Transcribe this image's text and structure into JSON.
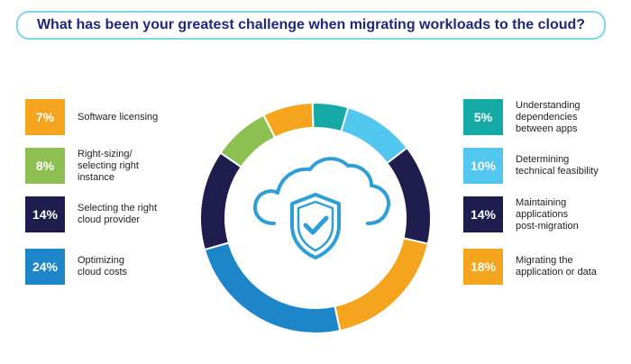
{
  "title": "What has been your greatest challenge when migrating workloads to the cloud?",
  "colors": {
    "orange": "#f5a51d",
    "green": "#8cc152",
    "navy": "#1f1d4e",
    "blue": "#1c86c9",
    "teal": "#16aaa6",
    "lightblue": "#51c6ee",
    "title_border": "#7fd4ec",
    "icon": "#2e9fd6"
  },
  "center_icon": "cloud-shield-check-icon",
  "chart_data": {
    "type": "pie",
    "subtype": "donut",
    "title": "What has been your greatest challenge when migrating workloads to the cloud?",
    "slices": [
      {
        "label": "Understanding dependencies between apps",
        "value": 5,
        "value_label": "5%",
        "color": "#16aaa6"
      },
      {
        "label": "Determining technical feasibility",
        "value": 10,
        "value_label": "10%",
        "color": "#51c6ee"
      },
      {
        "label": "Maintaining applications post-migration",
        "value": 14,
        "value_label": "14%",
        "color": "#1f1d4e"
      },
      {
        "label": "Migrating the application or data",
        "value": 18,
        "value_label": "18%",
        "color": "#f5a51d"
      },
      {
        "label": "Optimizing cloud costs",
        "value": 24,
        "value_label": "24%",
        "color": "#1c86c9"
      },
      {
        "label": "Selecting the right cloud provider",
        "value": 14,
        "value_label": "14%",
        "color": "#1f1d4e"
      },
      {
        "label": "Right-sizing/ selecting right instance",
        "value": 8,
        "value_label": "8%",
        "color": "#8cc152"
      },
      {
        "label": "Software licensing",
        "value": 7,
        "value_label": "7%",
        "color": "#f5a51d"
      }
    ],
    "legend": {
      "left": [
        {
          "value_label": "7%",
          "lines": [
            "Software licensing"
          ],
          "color": "#f5a51d"
        },
        {
          "value_label": "8%",
          "lines": [
            "Right-sizing/",
            "selecting right",
            "instance"
          ],
          "color": "#8cc152"
        },
        {
          "value_label": "14%",
          "lines": [
            "Selecting the right",
            "cloud provider"
          ],
          "color": "#1f1d4e"
        },
        {
          "value_label": "24%",
          "lines": [
            "Optimizing",
            "cloud costs"
          ],
          "color": "#1c86c9"
        }
      ],
      "right": [
        {
          "value_label": "5%",
          "lines": [
            "Understanding",
            "dependencies",
            "between apps"
          ],
          "color": "#16aaa6"
        },
        {
          "value_label": "10%",
          "lines": [
            "Determining",
            "technical feasibility"
          ],
          "color": "#51c6ee"
        },
        {
          "value_label": "14%",
          "lines": [
            "Maintaining",
            "applications",
            "post-migration"
          ],
          "color": "#1f1d4e"
        },
        {
          "value_label": "18%",
          "lines": [
            "Migrating the",
            "application or data"
          ],
          "color": "#f5a51d"
        }
      ]
    }
  }
}
